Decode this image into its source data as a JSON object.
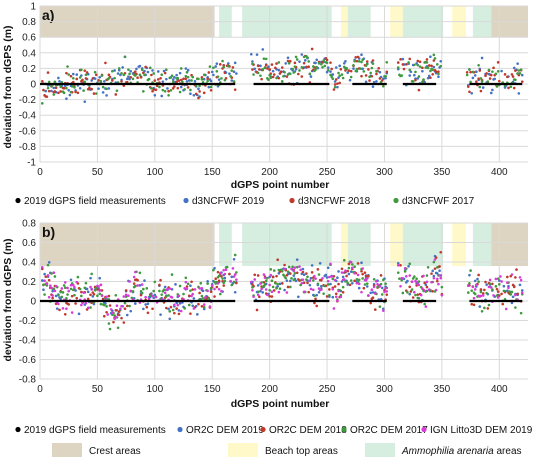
{
  "colors": {
    "crest": "#ddd5c2",
    "beach": "#fff9c9",
    "ammophilia": "#d6eedf",
    "grid": "#d9d9d9",
    "field": "#000000"
  },
  "area_legend": {
    "crest": "Crest areas",
    "beach": "Beach top areas",
    "ammo_italic": "Ammophilia arenaria",
    "ammo_rest": " areas"
  },
  "background_bands": [
    {
      "type": "crest",
      "from": 0,
      "to": 152
    },
    {
      "type": "ammophilia",
      "from": 156,
      "to": 167
    },
    {
      "type": "ammophilia",
      "from": 176,
      "to": 254
    },
    {
      "type": "beach",
      "from": 262,
      "to": 268
    },
    {
      "type": "ammophilia",
      "from": 268,
      "to": 288
    },
    {
      "type": "beach",
      "from": 305,
      "to": 316
    },
    {
      "type": "ammophilia",
      "from": 316,
      "to": 351
    },
    {
      "type": "beach",
      "from": 359,
      "to": 371
    },
    {
      "type": "ammophilia",
      "from": 377,
      "to": 393
    },
    {
      "type": "crest",
      "from": 393,
      "to": 425
    }
  ],
  "chart_data": [
    {
      "type": "scatter",
      "panel_label": "a)",
      "xlabel": "dGPS point number",
      "ylabel": "deviation from dGPS (m)",
      "xlim": [
        0,
        425
      ],
      "ylim": [
        -1,
        1
      ],
      "xticks": [
        0,
        50,
        100,
        150,
        200,
        250,
        300,
        350,
        400
      ],
      "yticks": [
        -1,
        -0.8,
        -0.6,
        -0.4,
        -0.2,
        0,
        0.2,
        0.4,
        0.6,
        0.8,
        1
      ],
      "ytick_labels": [
        "-1",
        "-0.8",
        "-0.6",
        "-0.4",
        "-0.2",
        "0",
        "0.2",
        "0.4",
        "0.6",
        "0.8",
        "1"
      ],
      "grid": true,
      "field_segments": [
        [
          0,
          170
        ],
        [
          186,
          252
        ],
        [
          272,
          302
        ],
        [
          316,
          345
        ],
        [
          374,
          420
        ]
      ],
      "series": [
        {
          "name": "2019 dGPS field measurements",
          "color": "#000000",
          "role": "field"
        },
        {
          "name": "d3NCFWF 2019",
          "color": "#4472c4",
          "seed": 11
        },
        {
          "name": "d3NCFWF 2018",
          "color": "#c0392b",
          "seed": 23
        },
        {
          "name": "d3NCFWF 2017",
          "color": "#3f9a3f",
          "seed": 37
        }
      ]
    },
    {
      "type": "scatter",
      "panel_label": "b)",
      "xlabel": "dGPS point number",
      "ylabel": "deviation from dGPS (m)",
      "xlim": [
        0,
        425
      ],
      "ylim": [
        -0.8,
        0.8
      ],
      "xticks": [
        0,
        50,
        100,
        150,
        200,
        250,
        300,
        350,
        400
      ],
      "yticks": [
        -0.8,
        -0.6,
        -0.4,
        -0.2,
        0,
        0.2,
        0.4,
        0.6,
        0.8
      ],
      "ytick_labels": [
        "-0.8",
        "-0.6",
        "-0.4",
        "-0.2",
        "0",
        "0.2",
        "0.4",
        "0.6",
        "0.8"
      ],
      "grid": true,
      "field_segments": [
        [
          0,
          170
        ],
        [
          186,
          252
        ],
        [
          272,
          302
        ],
        [
          316,
          345
        ],
        [
          374,
          420
        ]
      ],
      "series": [
        {
          "name": "2019 dGPS field measurements",
          "color": "#000000",
          "role": "field"
        },
        {
          "name": "OR2C DEM 2019",
          "color": "#4472c4",
          "seed": 51
        },
        {
          "name": "OR2C DEM 2018",
          "color": "#c0392b",
          "seed": 63
        },
        {
          "name": "OR2C DEM 2017",
          "color": "#3f9a3f",
          "seed": 77
        },
        {
          "name": "IGN Litto3D DEM 2019",
          "color": "#d63cd6",
          "seed": 89
        }
      ]
    }
  ]
}
